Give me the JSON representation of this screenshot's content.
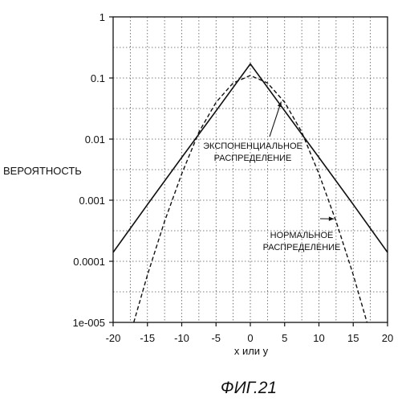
{
  "chart_data": {
    "type": "line",
    "xlabel": "x или y",
    "ylabel": "ВЕРОЯТНОСТЬ",
    "caption": "ФИГ.21",
    "y_scale": "log",
    "xlim": [
      -20,
      20
    ],
    "ylim": [
      1e-05,
      1
    ],
    "grid": true,
    "x_ticks": [
      -20,
      -15,
      -10,
      -5,
      0,
      5,
      10,
      15,
      20
    ],
    "x_tick_labels": [
      "-20",
      "-15",
      "-10",
      "-5",
      "0",
      "5",
      "10",
      "15",
      "20"
    ],
    "y_ticks": [
      1,
      0.1,
      0.01,
      0.001,
      0.0001,
      1e-05
    ],
    "y_tick_labels": [
      "1",
      "0.1",
      "0.01",
      "0.001",
      "0.0001",
      "1e-005"
    ],
    "series": [
      {
        "label": "ЭКСПОНЕНЦИАЛЬНОЕ РАСПРЕДЕЛЕНИЕ",
        "style": "solid",
        "x": [
          -20,
          -15,
          -10,
          -5,
          0,
          5,
          10,
          15,
          20
        ],
        "y": [
          0.00014,
          0.00085,
          0.005,
          0.029,
          0.17,
          0.029,
          0.005,
          0.00085,
          0.00014
        ]
      },
      {
        "label": "НОРМАЛЬНОЕ РАСПРЕДЕЛЕНИЕ",
        "style": "dashed",
        "x": [
          -17,
          -15,
          -12.5,
          -10,
          -7.5,
          -5,
          -2.5,
          0,
          2.5,
          5,
          7.5,
          10,
          12.5,
          15,
          17
        ],
        "y": [
          1e-05,
          6e-05,
          0.00045,
          0.0027,
          0.013,
          0.04,
          0.083,
          0.11,
          0.083,
          0.04,
          0.013,
          0.0027,
          0.00045,
          6e-05,
          1e-05
        ]
      }
    ],
    "annotations": [
      {
        "lines": [
          "ЭКСПОНЕНЦИАЛЬНОЕ",
          "РАСПРЕДЕЛЕНИЕ"
        ],
        "target": "dashed"
      },
      {
        "lines": [
          "НОРМАЛЬНОЕ",
          "РАСПРЕДЕЛЕНИЕ"
        ],
        "target": "dashed"
      }
    ]
  }
}
